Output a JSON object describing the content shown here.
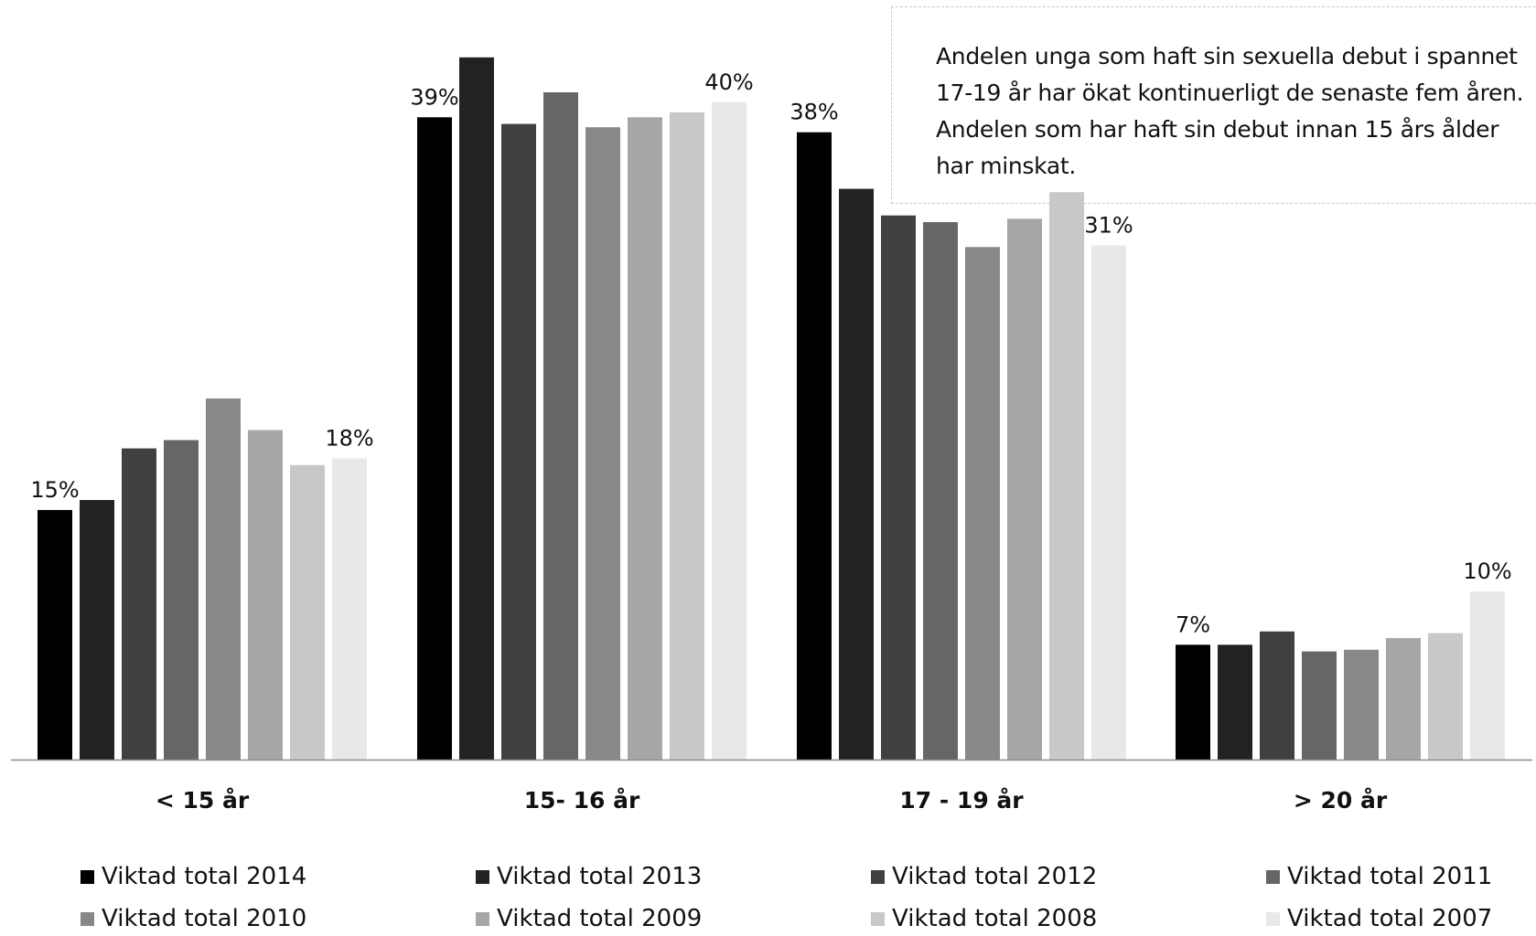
{
  "annotation": {
    "text": "Andelen unga som haft sin sexuella debut i spannet\n17-19 år har ökat kontinuerligt de senaste fem åren.\nAndelen som har haft sin debut innan 15 års ålder\nhar minskat."
  },
  "chart_data": {
    "type": "bar",
    "categories": [
      "< 15 år",
      "15- 16 år",
      "17 - 19 år",
      "> 20 år"
    ],
    "ylim": [
      0,
      44
    ],
    "grid": false,
    "legend_position": "bottom",
    "series": [
      {
        "name": "Viktad total 2014",
        "color": "#000000",
        "values": [
          15.0,
          38.6,
          37.7,
          6.9
        ]
      },
      {
        "name": "Viktad total 2013",
        "color": "#222222",
        "values": [
          15.6,
          42.2,
          34.3,
          6.9
        ]
      },
      {
        "name": "Viktad total 2012",
        "color": "#404040",
        "values": [
          18.7,
          38.2,
          32.7,
          7.7
        ]
      },
      {
        "name": "Viktad total 2011",
        "color": "#666666",
        "values": [
          19.2,
          40.1,
          32.3,
          6.5
        ]
      },
      {
        "name": "Viktad total 2010",
        "color": "#888888",
        "values": [
          21.7,
          38.0,
          30.8,
          6.6
        ]
      },
      {
        "name": "Viktad total 2009",
        "color": "#a6a6a6",
        "values": [
          19.8,
          38.6,
          32.5,
          7.3
        ]
      },
      {
        "name": "Viktad total 2008",
        "color": "#c8c8c8",
        "values": [
          17.7,
          38.9,
          34.1,
          7.6
        ]
      },
      {
        "name": "Viktad total 2007",
        "color": "#e8e8e8",
        "values": [
          18.1,
          39.5,
          30.9,
          10.1
        ]
      }
    ],
    "data_labels": [
      {
        "category": 0,
        "series": 0,
        "text": "15%"
      },
      {
        "category": 0,
        "series": 7,
        "text": "18%"
      },
      {
        "category": 1,
        "series": 0,
        "text": "39%"
      },
      {
        "category": 1,
        "series": 7,
        "text": "40%"
      },
      {
        "category": 2,
        "series": 0,
        "text": "38%"
      },
      {
        "category": 2,
        "series": 7,
        "text": "31%"
      },
      {
        "category": 3,
        "series": 0,
        "text": "7%"
      },
      {
        "category": 3,
        "series": 7,
        "text": "10%"
      }
    ]
  }
}
